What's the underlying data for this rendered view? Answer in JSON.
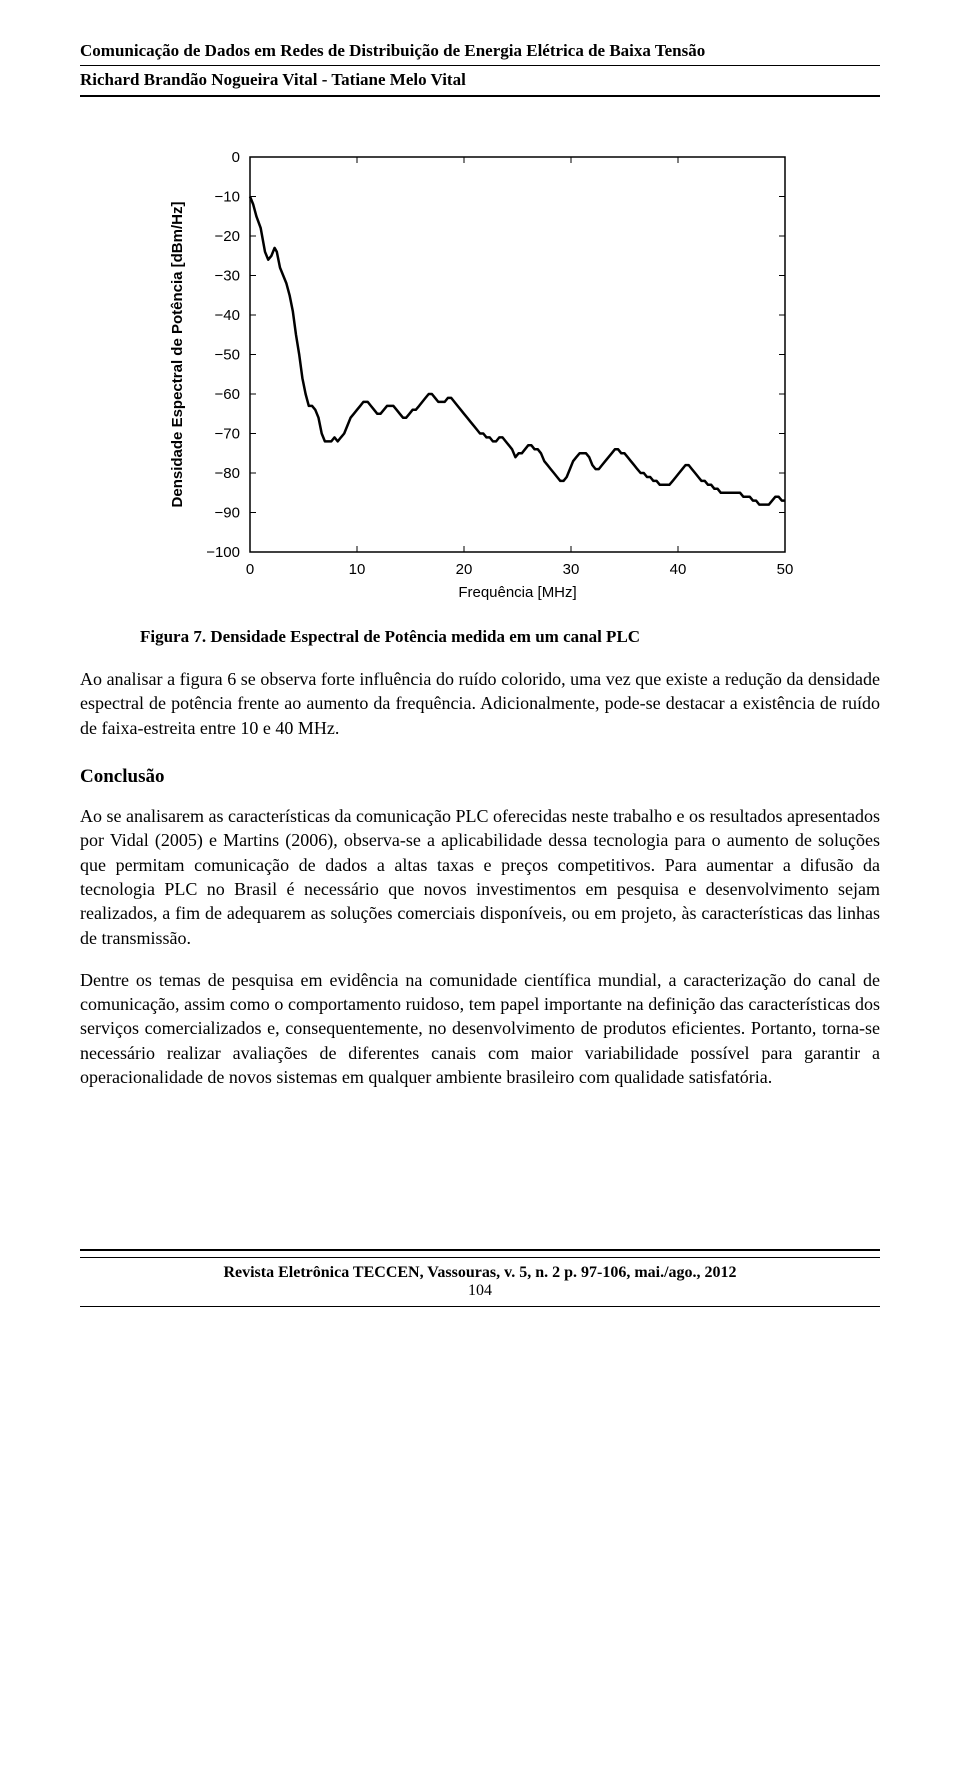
{
  "header": {
    "title": "Comunicação de Dados em Redes de Distribuição de Energia Elétrica de Baixa Tensão",
    "authors": "Richard Brandão Nogueira Vital - Tatiane Melo Vital"
  },
  "chart": {
    "type": "line",
    "xlabel": "Frequência [MHz]",
    "ylabel": "Densidade Espectral de Potência [dBm/Hz]",
    "xlim": [
      0,
      50
    ],
    "ylim": [
      -100,
      0
    ],
    "xtick_values": [
      0,
      10,
      20,
      30,
      40,
      50
    ],
    "ytick_values": [
      0,
      -10,
      -20,
      -30,
      -40,
      -50,
      -60,
      -70,
      -80,
      -90,
      -100
    ],
    "xtick_labels": [
      "0",
      "10",
      "20",
      "30",
      "40",
      "50"
    ],
    "ytick_labels": [
      "0",
      "−10",
      "−20",
      "−30",
      "−40",
      "−50",
      "−60",
      "−70",
      "−80",
      "−90",
      "−100"
    ],
    "line_color": "#000000",
    "line_width": 2.5,
    "box_color": "#000000",
    "background_color": "#ffffff",
    "label_fontsize": 15,
    "tick_fontsize": 15,
    "data": [
      [
        0.0,
        -10
      ],
      [
        0.3,
        -12
      ],
      [
        0.6,
        -15
      ],
      [
        1.0,
        -18
      ],
      [
        1.4,
        -24
      ],
      [
        1.7,
        -26
      ],
      [
        2.0,
        -25
      ],
      [
        2.3,
        -23
      ],
      [
        2.5,
        -24
      ],
      [
        2.8,
        -28
      ],
      [
        3.1,
        -30
      ],
      [
        3.4,
        -32
      ],
      [
        3.7,
        -35
      ],
      [
        4.0,
        -39
      ],
      [
        4.3,
        -45
      ],
      [
        4.6,
        -50
      ],
      [
        4.9,
        -56
      ],
      [
        5.2,
        -60
      ],
      [
        5.5,
        -63
      ],
      [
        5.8,
        -63
      ],
      [
        6.1,
        -64
      ],
      [
        6.4,
        -66
      ],
      [
        6.7,
        -70
      ],
      [
        7.0,
        -72
      ],
      [
        7.3,
        -72
      ],
      [
        7.6,
        -72
      ],
      [
        7.9,
        -71
      ],
      [
        8.2,
        -72
      ],
      [
        8.5,
        -71
      ],
      [
        8.8,
        -70
      ],
      [
        9.1,
        -68
      ],
      [
        9.4,
        -66
      ],
      [
        9.7,
        -65
      ],
      [
        10.0,
        -64
      ],
      [
        10.3,
        -63
      ],
      [
        10.6,
        -62
      ],
      [
        11.0,
        -62
      ],
      [
        11.3,
        -63
      ],
      [
        11.6,
        -64
      ],
      [
        11.9,
        -65
      ],
      [
        12.2,
        -65
      ],
      [
        12.5,
        -64
      ],
      [
        12.8,
        -63
      ],
      [
        13.1,
        -63
      ],
      [
        13.4,
        -63
      ],
      [
        13.7,
        -64
      ],
      [
        14.0,
        -65
      ],
      [
        14.3,
        -66
      ],
      [
        14.6,
        -66
      ],
      [
        14.9,
        -65
      ],
      [
        15.2,
        -64
      ],
      [
        15.5,
        -64
      ],
      [
        15.8,
        -63
      ],
      [
        16.1,
        -62
      ],
      [
        16.4,
        -61
      ],
      [
        16.7,
        -60
      ],
      [
        17.0,
        -60
      ],
      [
        17.3,
        -61
      ],
      [
        17.6,
        -62
      ],
      [
        17.9,
        -62
      ],
      [
        18.2,
        -62
      ],
      [
        18.5,
        -61
      ],
      [
        18.8,
        -61
      ],
      [
        19.1,
        -62
      ],
      [
        19.4,
        -63
      ],
      [
        19.7,
        -64
      ],
      [
        20.0,
        -65
      ],
      [
        20.3,
        -66
      ],
      [
        20.6,
        -67
      ],
      [
        20.9,
        -68
      ],
      [
        21.2,
        -69
      ],
      [
        21.5,
        -70
      ],
      [
        21.8,
        -70
      ],
      [
        22.1,
        -71
      ],
      [
        22.4,
        -71
      ],
      [
        22.7,
        -72
      ],
      [
        23.0,
        -72
      ],
      [
        23.3,
        -71
      ],
      [
        23.6,
        -71
      ],
      [
        23.9,
        -72
      ],
      [
        24.2,
        -73
      ],
      [
        24.5,
        -74
      ],
      [
        24.8,
        -76
      ],
      [
        25.1,
        -75
      ],
      [
        25.4,
        -75
      ],
      [
        25.7,
        -74
      ],
      [
        26.0,
        -73
      ],
      [
        26.3,
        -73
      ],
      [
        26.6,
        -74
      ],
      [
        26.9,
        -74
      ],
      [
        27.2,
        -75
      ],
      [
        27.5,
        -77
      ],
      [
        27.8,
        -78
      ],
      [
        28.1,
        -79
      ],
      [
        28.4,
        -80
      ],
      [
        28.7,
        -81
      ],
      [
        29.0,
        -82
      ],
      [
        29.3,
        -82
      ],
      [
        29.6,
        -81
      ],
      [
        29.9,
        -79
      ],
      [
        30.2,
        -77
      ],
      [
        30.5,
        -76
      ],
      [
        30.8,
        -75
      ],
      [
        31.1,
        -75
      ],
      [
        31.4,
        -75
      ],
      [
        31.7,
        -76
      ],
      [
        32.0,
        -78
      ],
      [
        32.3,
        -79
      ],
      [
        32.6,
        -79
      ],
      [
        32.9,
        -78
      ],
      [
        33.2,
        -77
      ],
      [
        33.5,
        -76
      ],
      [
        33.8,
        -75
      ],
      [
        34.1,
        -74
      ],
      [
        34.4,
        -74
      ],
      [
        34.7,
        -75
      ],
      [
        35.0,
        -75
      ],
      [
        35.3,
        -76
      ],
      [
        35.6,
        -77
      ],
      [
        35.9,
        -78
      ],
      [
        36.2,
        -79
      ],
      [
        36.5,
        -80
      ],
      [
        36.8,
        -80
      ],
      [
        37.1,
        -81
      ],
      [
        37.4,
        -81
      ],
      [
        37.7,
        -82
      ],
      [
        38.0,
        -82
      ],
      [
        38.3,
        -83
      ],
      [
        38.6,
        -83
      ],
      [
        38.9,
        -83
      ],
      [
        39.2,
        -83
      ],
      [
        39.5,
        -82
      ],
      [
        39.8,
        -81
      ],
      [
        40.1,
        -80
      ],
      [
        40.4,
        -79
      ],
      [
        40.7,
        -78
      ],
      [
        41.0,
        -78
      ],
      [
        41.3,
        -79
      ],
      [
        41.6,
        -80
      ],
      [
        41.9,
        -81
      ],
      [
        42.2,
        -82
      ],
      [
        42.5,
        -82
      ],
      [
        42.8,
        -83
      ],
      [
        43.1,
        -83
      ],
      [
        43.4,
        -84
      ],
      [
        43.7,
        -84
      ],
      [
        44.0,
        -85
      ],
      [
        44.3,
        -85
      ],
      [
        44.6,
        -85
      ],
      [
        44.9,
        -85
      ],
      [
        45.2,
        -85
      ],
      [
        45.5,
        -85
      ],
      [
        45.8,
        -85
      ],
      [
        46.1,
        -86
      ],
      [
        46.4,
        -86
      ],
      [
        46.7,
        -86
      ],
      [
        47.0,
        -87
      ],
      [
        47.3,
        -87
      ],
      [
        47.6,
        -88
      ],
      [
        47.9,
        -88
      ],
      [
        48.2,
        -88
      ],
      [
        48.5,
        -88
      ],
      [
        48.8,
        -87
      ],
      [
        49.1,
        -86
      ],
      [
        49.4,
        -86
      ],
      [
        49.7,
        -87
      ],
      [
        50.0,
        -87
      ]
    ]
  },
  "figure_caption": "Figura 7. Densidade Espectral de Potência medida em um canal PLC",
  "paragraphs": {
    "p1": "Ao analisar a figura 6 se observa forte influência do ruído colorido, uma vez que existe a redução da densidade espectral de potência frente ao aumento da frequência. Adicionalmente, pode-se destacar a existência de ruído de faixa-estreita entre 10 e 40 MHz.",
    "p2": "Ao se analisarem as características da comunicação PLC oferecidas neste trabalho e os resultados apresentados por Vidal (2005) e Martins (2006), observa-se a aplicabilidade dessa tecnologia para o aumento de soluções que permitam comunicação de dados a altas taxas e preços competitivos. Para aumentar a difusão da tecnologia PLC no Brasil é necessário que novos investimentos em pesquisa e desenvolvimento sejam realizados, a fim de adequarem as soluções comerciais disponíveis, ou em projeto, às características das linhas de transmissão.",
    "p3": "Dentre os temas de pesquisa em evidência na comunidade científica mundial, a caracterização do canal de comunicação, assim como o comportamento ruidoso, tem papel importante na definição das características dos serviços comercializados e, consequentemente, no desenvolvimento de produtos eficientes. Portanto, torna-se necessário realizar avaliações de diferentes canais com maior variabilidade possível para garantir a operacionalidade de novos sistemas em qualquer ambiente brasileiro com qualidade satisfatória."
  },
  "section_heading": "Conclusão",
  "footer": {
    "citation": "Revista Eletrônica TECCEN, Vassouras, v. 5, n. 2  p. 97-106, mai./ago., 2012",
    "page": "104"
  }
}
